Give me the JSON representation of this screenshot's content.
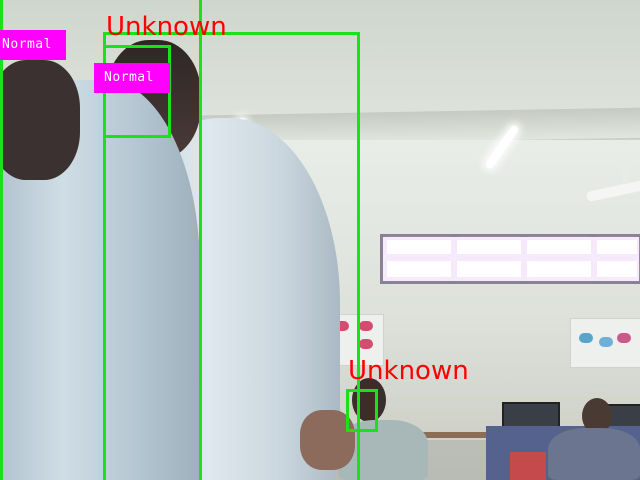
{
  "detections": [
    {
      "id": "face-left",
      "label": "Normal"
    },
    {
      "id": "person-center",
      "label": "Unknown"
    },
    {
      "id": "face-center",
      "label": "Normal"
    },
    {
      "id": "face-background",
      "label": "Unknown"
    }
  ],
  "colors": {
    "box": "#19e219",
    "normal_tag_bg": "#ff00ff",
    "normal_tag_text": "#ffffff",
    "unknown_text": "#ff0000"
  }
}
